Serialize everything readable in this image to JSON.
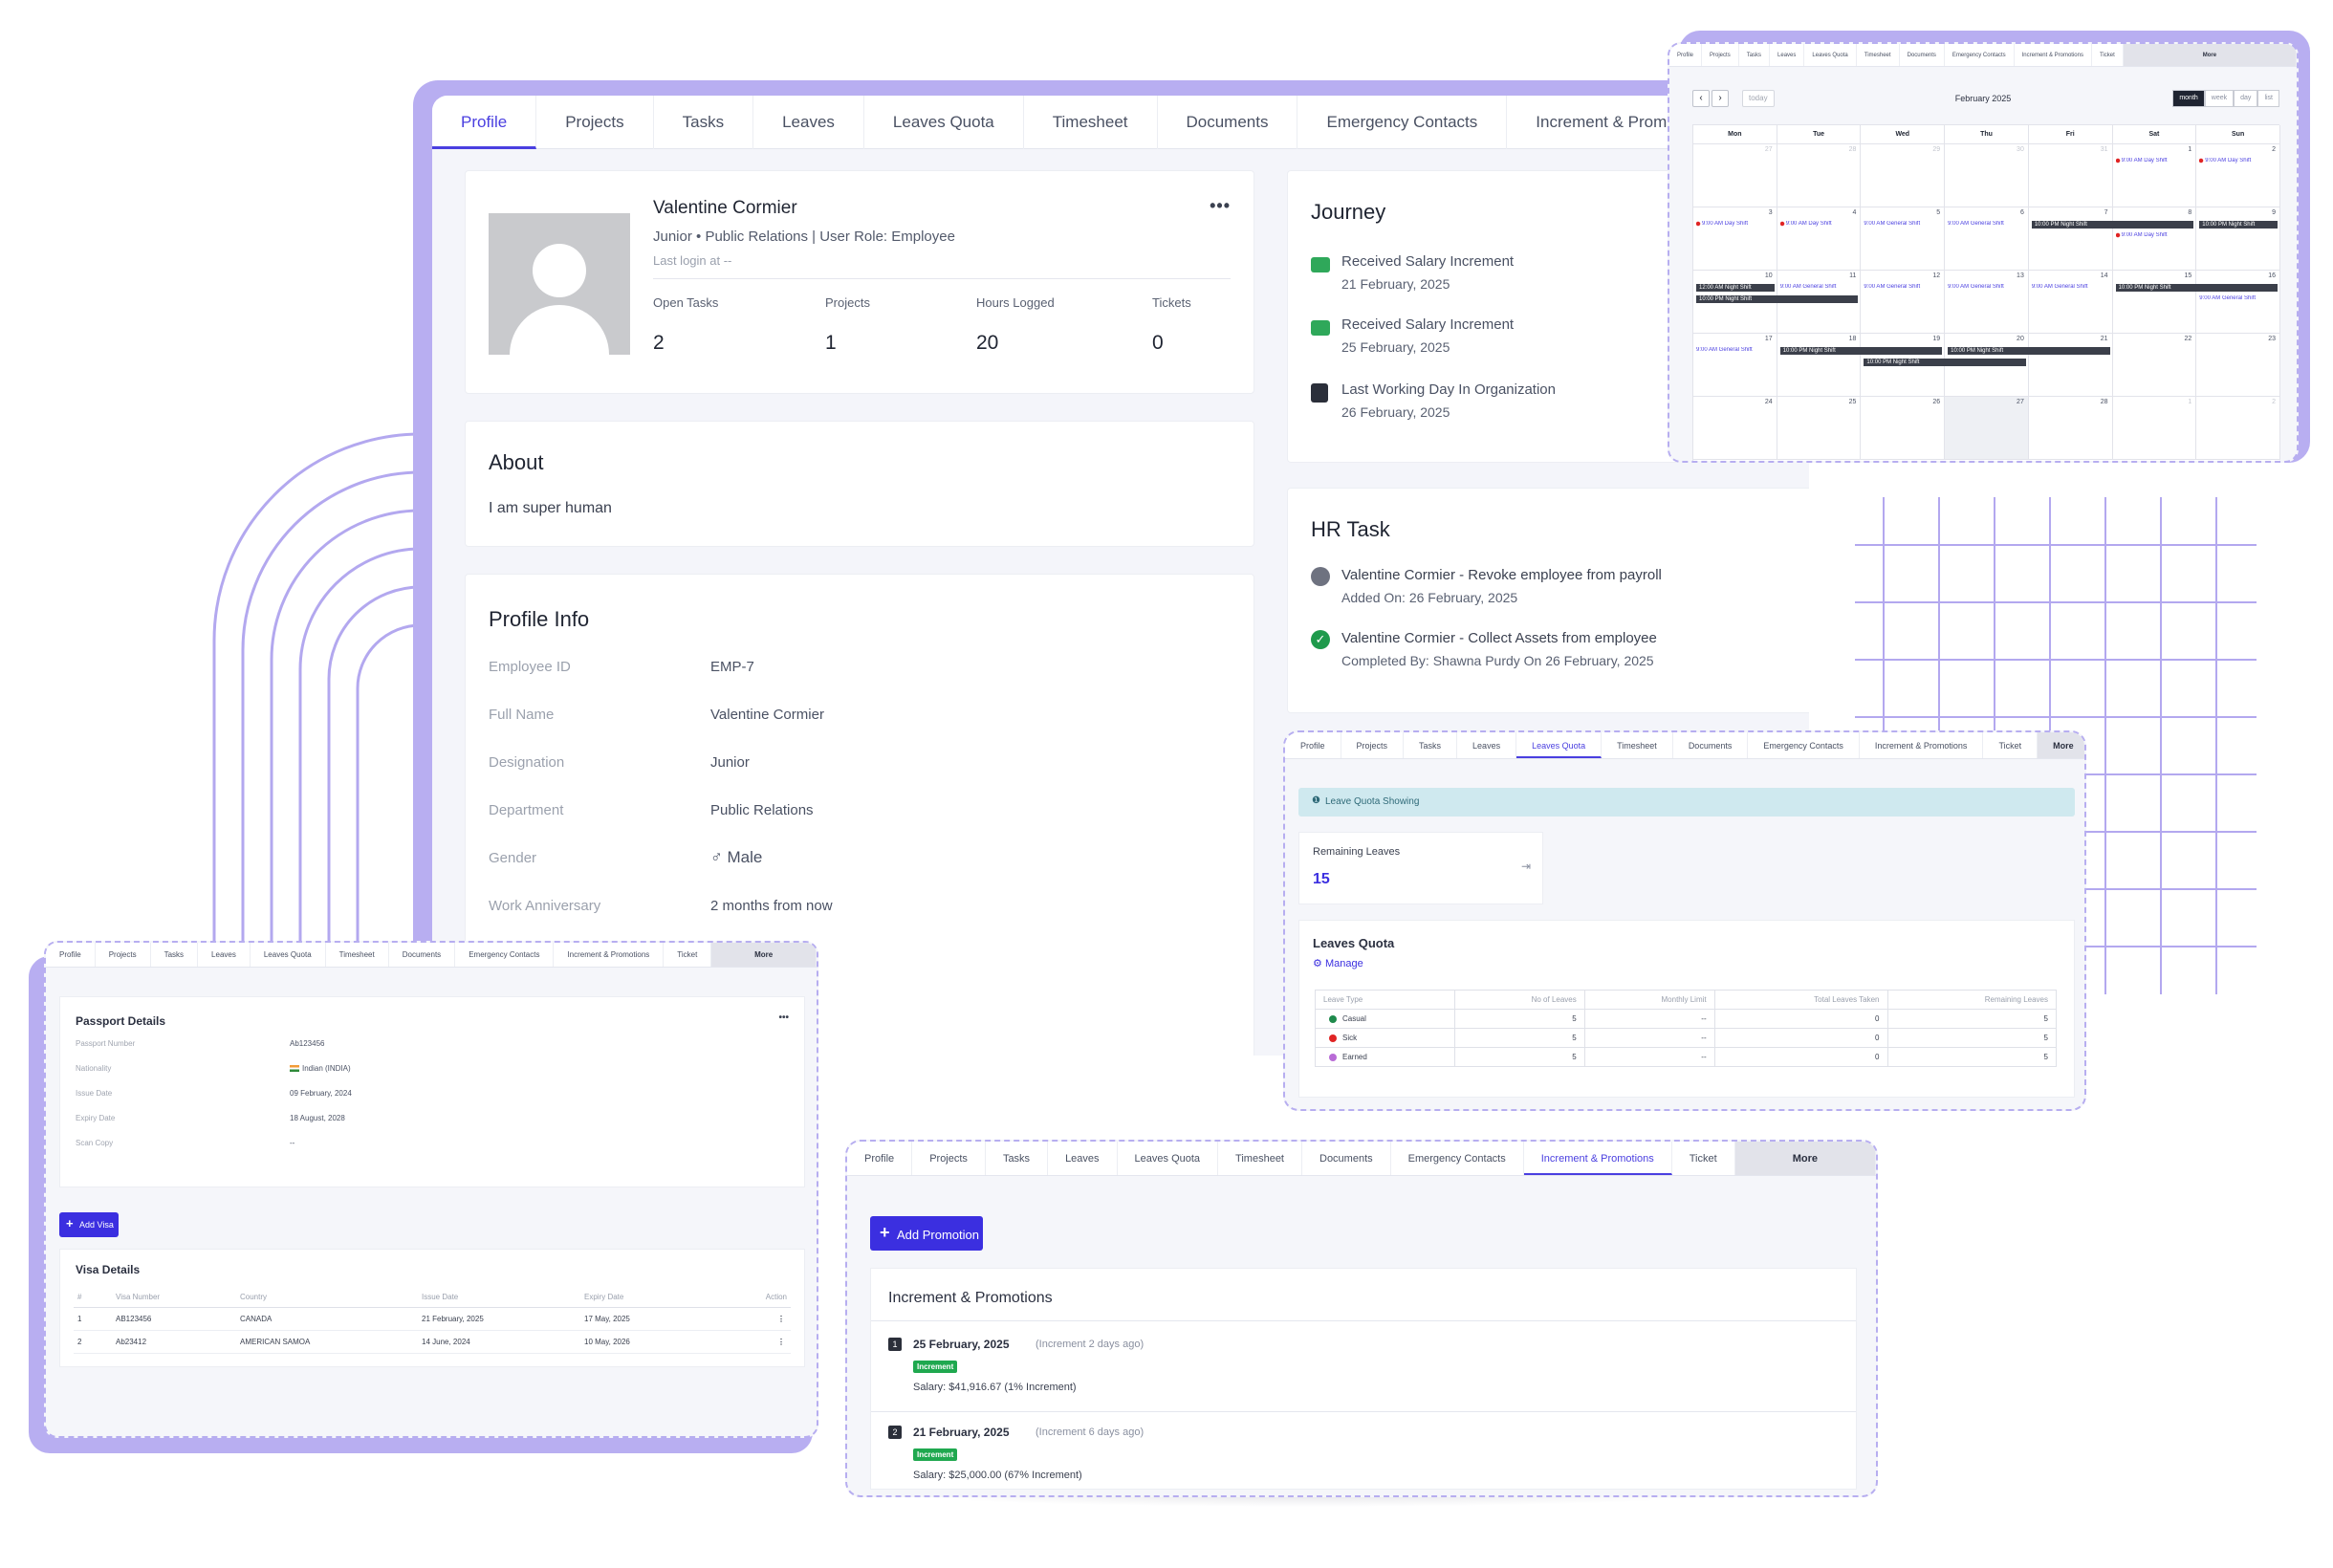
{
  "tabs": [
    {
      "label": "Profile",
      "name": "tab-profile",
      "active": true
    },
    {
      "label": "Projects",
      "name": "tab-projects"
    },
    {
      "label": "Tasks",
      "name": "tab-tasks"
    },
    {
      "label": "Leaves",
      "name": "tab-leaves"
    },
    {
      "label": "Leaves Quota",
      "name": "tab-leaves-quota"
    },
    {
      "label": "Timesheet",
      "name": "tab-timesheet"
    },
    {
      "label": "Documents",
      "name": "tab-documents"
    },
    {
      "label": "Emergency Contacts",
      "name": "tab-emergency-contacts"
    },
    {
      "label": "Increment & Promotions",
      "name": "tab-increment-promotions"
    }
  ],
  "overlay_tabs": [
    "Profile",
    "Projects",
    "Tasks",
    "Leaves",
    "Leaves Quota",
    "Timesheet",
    "Documents",
    "Emergency Contacts",
    "Increment & Promotions",
    "Ticket",
    "More"
  ],
  "profile": {
    "name": "Valentine Cormier",
    "subline": "Junior • Public Relations   | User Role: Employee",
    "last_login": "Last login at --",
    "more": "•••",
    "stats": [
      {
        "label": "Open Tasks",
        "value": "2"
      },
      {
        "label": "Projects",
        "value": "1"
      },
      {
        "label": "Hours Logged",
        "value": "20"
      },
      {
        "label": "Tickets",
        "value": "0"
      }
    ]
  },
  "about": {
    "title": "About",
    "text": "I am super human"
  },
  "profile_info": {
    "title": "Profile Info",
    "rows": [
      {
        "label": "Employee ID",
        "value": "EMP-7"
      },
      {
        "label": "Full Name",
        "value": "Valentine Cormier"
      },
      {
        "label": "Designation",
        "value": "Junior"
      },
      {
        "label": "Department",
        "value": "Public Relations"
      },
      {
        "label": "Gender",
        "value": "♂ Male"
      },
      {
        "label": "Work Anniversary",
        "value": "2 months from now"
      }
    ]
  },
  "journey": {
    "title": "Journey",
    "items": [
      {
        "title": "Received Salary Increment",
        "date": "21 February, 2025",
        "color": "#2fa85a"
      },
      {
        "title": "Received Salary Increment",
        "date": "25 February, 2025",
        "color": "#2fa85a"
      },
      {
        "title": "Last Working Day In Organization",
        "date": "26 February, 2025",
        "color": "#2b2f3a"
      }
    ]
  },
  "hr_task": {
    "title": "HR Task",
    "items": [
      {
        "title": "Valentine Cormier - Revoke employee from payroll",
        "meta": "Added On: 26 February, 2025",
        "done": false
      },
      {
        "title": "Valentine Cormier - Collect Assets from employee",
        "meta": "Completed By: Shawna Purdy On 26 February, 2025",
        "done": true
      }
    ]
  },
  "calendar": {
    "title": "February 2025",
    "today": "today",
    "views": [
      "month",
      "week",
      "day",
      "list"
    ],
    "days": [
      "Mon",
      "Tue",
      "Wed",
      "Thu",
      "Fri",
      "Sat",
      "Sun"
    ],
    "weeks": [
      [
        "27",
        "28",
        "29",
        "30",
        "31",
        "1",
        "2"
      ],
      [
        "3",
        "4",
        "5",
        "6",
        "7",
        "8",
        "9"
      ],
      [
        "10",
        "11",
        "12",
        "13",
        "14",
        "15",
        "16"
      ],
      [
        "17",
        "18",
        "19",
        "20",
        "21",
        "22",
        "23"
      ],
      [
        "24",
        "25",
        "26",
        "27",
        "28",
        "1",
        "2"
      ]
    ],
    "ev_day": "9:00 AM Day Shift",
    "ev_general": "9:00 AM General Shift",
    "ev_night": "10:00 PM Night Shift",
    "ev_night_am": "12:00 AM Night Shift"
  },
  "leave_quota": {
    "alert": "Leave Quota Showing",
    "remaining_label": "Remaining Leaves",
    "remaining_value": "15",
    "title": "Leaves Quota",
    "manage": "Manage",
    "headers": [
      "Leave Type",
      "No of Leaves",
      "Monthly Limit",
      "Total Leaves Taken",
      "Remaining Leaves"
    ],
    "rows": [
      {
        "type": "Casual",
        "color": "#1f8a4c",
        "no": "5",
        "limit": "--",
        "taken": "0",
        "remaining": "5"
      },
      {
        "type": "Sick",
        "color": "#e02424",
        "no": "5",
        "limit": "--",
        "taken": "0",
        "remaining": "5"
      },
      {
        "type": "Earned",
        "color": "#b86bd6",
        "no": "5",
        "limit": "--",
        "taken": "0",
        "remaining": "5"
      }
    ]
  },
  "passport": {
    "title": "Passport Details",
    "more": "•••",
    "rows": [
      {
        "label": "Passport Number",
        "value": "Ab123456"
      },
      {
        "label": "Nationality",
        "value": "Indian (INDIA)"
      },
      {
        "label": "Issue Date",
        "value": "09 February, 2024"
      },
      {
        "label": "Expiry Date",
        "value": "18 August, 2028"
      },
      {
        "label": "Scan Copy",
        "value": "--"
      }
    ],
    "add_visa": "Add Visa",
    "visa_title": "Visa Details",
    "visa_headers": [
      "#",
      "Visa Number",
      "Country",
      "Issue Date",
      "Expiry Date",
      "Action"
    ],
    "visa_rows": [
      {
        "n": "1",
        "number": "AB123456",
        "country": "CANADA",
        "issue": "21 February, 2025",
        "expiry": "17 May, 2025"
      },
      {
        "n": "2",
        "number": "Ab23412",
        "country": "AMERICAN SAMOA",
        "issue": "14 June, 2024",
        "expiry": "10 May, 2026"
      }
    ]
  },
  "promotions": {
    "add": "Add Promotion",
    "title": "Increment & Promotions",
    "badge": "Increment",
    "items": [
      {
        "n": "1",
        "date": "25 February, 2025",
        "ago": "(Increment 2 days ago)",
        "salary": "Salary: $41,916.67 (1% Increment)"
      },
      {
        "n": "2",
        "date": "21 February, 2025",
        "ago": "(Increment 6 days ago)",
        "salary": "Salary: $25,000.00 (67% Increment)"
      }
    ]
  }
}
